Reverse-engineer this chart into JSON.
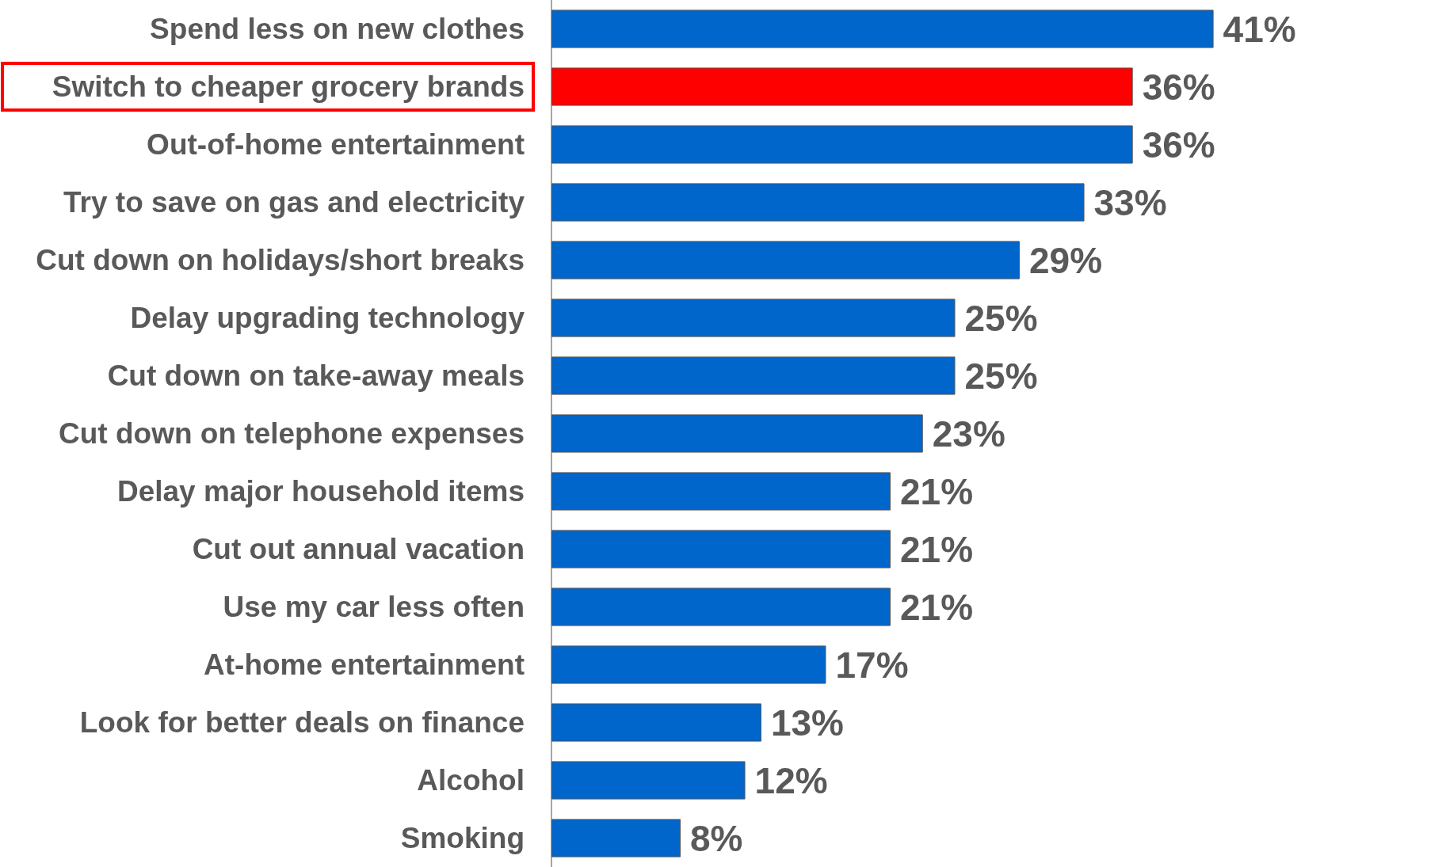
{
  "chart_data": {
    "type": "bar",
    "orientation": "horizontal",
    "categories": [
      "Spend less on new clothes",
      "Switch to cheaper grocery brands",
      "Out-of-home entertainment",
      "Try to save on gas and electricity",
      "Cut down on holidays/short breaks",
      "Delay upgrading technology",
      "Cut down on take-away meals",
      "Cut down on telephone expenses",
      "Delay major household items",
      "Cut out annual vacation",
      "Use my car less often",
      "At-home entertainment",
      "Look for better deals on finance",
      "Alcohol",
      "Smoking"
    ],
    "values": [
      41,
      36,
      36,
      33,
      29,
      25,
      25,
      23,
      21,
      21,
      21,
      17,
      13,
      12,
      8
    ],
    "colors": [
      "#0066cc",
      "#ff0000",
      "#0066cc",
      "#0066cc",
      "#0066cc",
      "#0066cc",
      "#0066cc",
      "#0066cc",
      "#0066cc",
      "#0066cc",
      "#0066cc",
      "#0066cc",
      "#0066cc",
      "#0066cc",
      "#0066cc"
    ],
    "value_labels": [
      "41%",
      "36%",
      "36%",
      "33%",
      "29%",
      "25%",
      "25%",
      "23%",
      "21%",
      "21%",
      "21%",
      "17%",
      "13%",
      "12%",
      "8%"
    ],
    "tick_labels": "y"
  }
}
